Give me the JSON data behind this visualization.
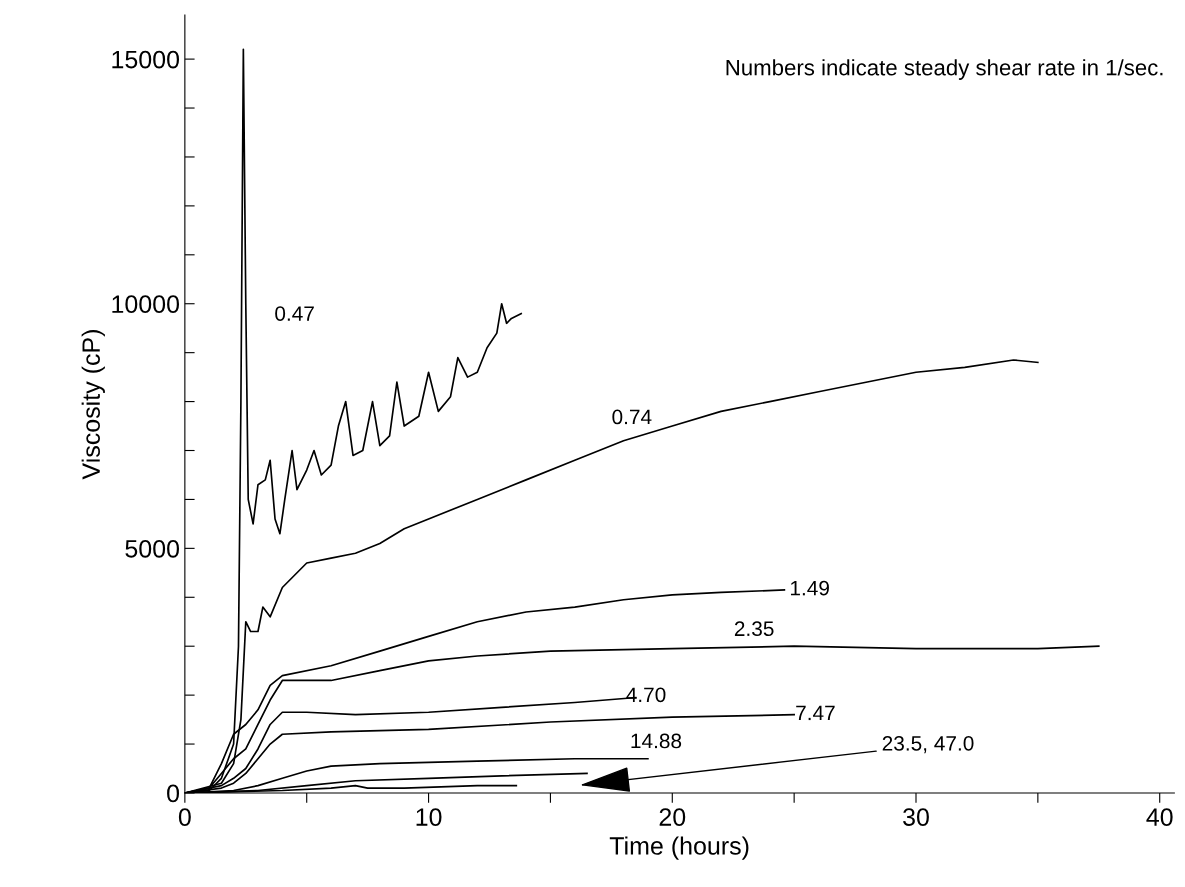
{
  "chart_data": {
    "type": "line",
    "xlabel": "Time (hours)",
    "ylabel": "Viscosity (cP)",
    "xlim": [
      0,
      40.6
    ],
    "ylim": [
      0,
      15900
    ],
    "xticks": [
      0,
      {
        "value": 5,
        "label": null
      },
      10,
      {
        "value": 15,
        "label": null
      },
      20,
      {
        "value": 25,
        "label": null
      },
      30,
      {
        "value": 35,
        "label": null
      },
      40
    ],
    "yticks": [
      0,
      {
        "value": 1000,
        "label": null
      },
      {
        "value": 2000,
        "label": null
      },
      {
        "value": 3000,
        "label": null
      },
      {
        "value": 4000,
        "label": null
      },
      5000,
      {
        "value": 6000,
        "label": null
      },
      {
        "value": 7000,
        "label": null
      },
      {
        "value": 8000,
        "label": null
      },
      {
        "value": 9000,
        "label": null
      },
      10000,
      {
        "value": 11000,
        "label": null
      },
      {
        "value": 12000,
        "label": null
      },
      {
        "value": 13000,
        "label": null
      },
      {
        "value": 14000,
        "label": null
      },
      15000
    ],
    "grid": false,
    "legend": false,
    "marker": "none",
    "line_style": "solid",
    "series": [
      {
        "name": "0.47",
        "color": "#000000",
        "x": [
          0,
          1,
          1.5,
          2.0,
          2.2,
          2.3,
          2.4,
          2.5,
          2.6,
          2.8,
          3.0,
          3.3,
          3.5,
          3.7,
          3.9,
          4.1,
          4.4,
          4.6,
          5.0,
          5.3,
          5.6,
          6.0,
          6.3,
          6.6,
          6.9,
          7.3,
          7.7,
          8.0,
          8.4,
          8.7,
          9.0,
          9.6,
          10.0,
          10.4,
          10.9,
          11.2,
          11.6,
          12.0,
          12.4,
          12.8,
          13.0,
          13.2,
          13.4,
          13.8
        ],
        "values": [
          0,
          50,
          300,
          1000,
          3000,
          8000,
          15200,
          10000,
          6000,
          5500,
          6300,
          6400,
          6800,
          5600,
          5300,
          6000,
          7000,
          6200,
          6600,
          7000,
          6500,
          6700,
          7500,
          8000,
          6900,
          7000,
          8000,
          7100,
          7300,
          8400,
          7500,
          7700,
          8600,
          7800,
          8100,
          8900,
          8500,
          8600,
          9100,
          9400,
          10000,
          9600,
          9700,
          9800
        ]
      },
      {
        "name": "0.74",
        "color": "#000000",
        "x": [
          0,
          1.5,
          2.0,
          2.3,
          2.5,
          2.7,
          3.0,
          3.2,
          3.5,
          4,
          5,
          6,
          7,
          8,
          9,
          10,
          12,
          14,
          16,
          18,
          20,
          22,
          24,
          26,
          28,
          30,
          32,
          34,
          35
        ],
        "values": [
          0,
          200,
          600,
          1500,
          3500,
          3300,
          3300,
          3800,
          3600,
          4200,
          4700,
          4800,
          4900,
          5100,
          5400,
          5600,
          6000,
          6400,
          6800,
          7200,
          7500,
          7800,
          8000,
          8200,
          8400,
          8600,
          8700,
          8850,
          8800
        ]
      },
      {
        "name": "1.49",
        "color": "#000000",
        "x": [
          0,
          1,
          1.5,
          2,
          2.5,
          3,
          3.5,
          4,
          6,
          8,
          10,
          12,
          14,
          16,
          18,
          20,
          22,
          24.6
        ],
        "values": [
          0,
          100,
          600,
          1200,
          1400,
          1700,
          2200,
          2400,
          2600,
          2900,
          3200,
          3500,
          3700,
          3800,
          3950,
          4050,
          4100,
          4150
        ]
      },
      {
        "name": "2.35",
        "color": "#000000",
        "x": [
          0,
          1,
          1.5,
          2,
          2.5,
          3,
          3.5,
          4,
          5,
          6,
          8,
          10,
          12,
          15,
          20,
          25,
          30,
          35,
          37.5
        ],
        "values": [
          0,
          100,
          400,
          700,
          900,
          1400,
          1900,
          2300,
          2300,
          2300,
          2500,
          2700,
          2800,
          2900,
          2950,
          3000,
          2950,
          2950,
          3000
        ]
      },
      {
        "name": "4.70",
        "color": "#000000",
        "x": [
          0,
          1.5,
          2,
          2.5,
          3,
          3.5,
          4,
          5,
          7,
          10,
          13,
          16,
          18.5
        ],
        "values": [
          0,
          150,
          300,
          500,
          900,
          1400,
          1650,
          1650,
          1600,
          1650,
          1750,
          1850,
          1950
        ]
      },
      {
        "name": "7.47",
        "color": "#000000",
        "x": [
          0,
          1.5,
          2,
          2.5,
          3,
          3.5,
          4,
          6,
          10,
          15,
          20,
          25
        ],
        "values": [
          0,
          100,
          200,
          400,
          700,
          1000,
          1200,
          1250,
          1300,
          1450,
          1550,
          1600
        ]
      },
      {
        "name": "14.88",
        "color": "#000000",
        "x": [
          0,
          2,
          3,
          4,
          5,
          6,
          8,
          12,
          16,
          19
        ],
        "values": [
          0,
          50,
          150,
          300,
          450,
          550,
          600,
          650,
          700,
          700
        ]
      },
      {
        "color": "#000000",
        "x": [
          0,
          3,
          5,
          7,
          10,
          13,
          16.5
        ],
        "values": [
          0,
          50,
          150,
          250,
          300,
          350,
          400
        ]
      },
      {
        "color": "#000000",
        "x": [
          0,
          4,
          6,
          7,
          7.5,
          9,
          12,
          13.6
        ],
        "values": [
          0,
          50,
          100,
          150,
          100,
          100,
          150,
          150
        ]
      }
    ],
    "annotations": [
      "Numbers indicate steady shear rate in 1/sec.",
      "23.5, 47.0"
    ]
  }
}
